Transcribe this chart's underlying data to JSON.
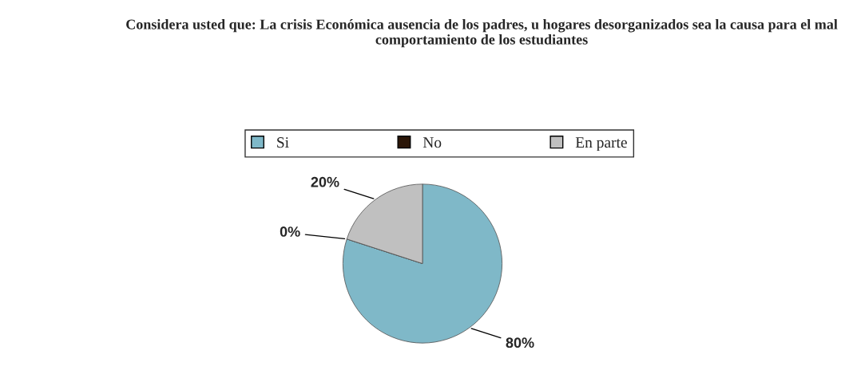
{
  "chart_data": {
    "type": "pie",
    "title": "Considera usted que: La crisis Económica ausencia de los padres, u hogares desorganizados sea la causa para el mal comportamiento de los estudiantes",
    "categories": [
      "Si",
      "No",
      "En parte"
    ],
    "values": [
      80,
      0,
      20
    ],
    "colors": [
      "#7fb8c8",
      "#2b1608",
      "#c0c0c0"
    ],
    "value_labels": [
      "80%",
      "0%",
      "20%"
    ],
    "legend": "top"
  }
}
